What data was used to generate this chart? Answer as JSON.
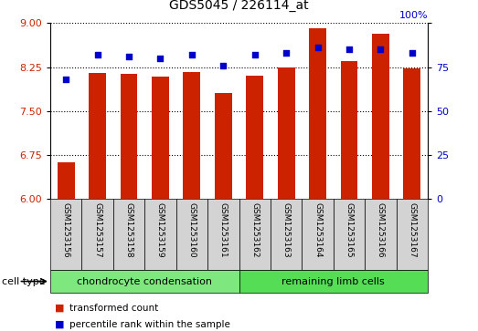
{
  "title": "GDS5045 / 226114_at",
  "samples": [
    "GSM1253156",
    "GSM1253157",
    "GSM1253158",
    "GSM1253159",
    "GSM1253160",
    "GSM1253161",
    "GSM1253162",
    "GSM1253163",
    "GSM1253164",
    "GSM1253165",
    "GSM1253166",
    "GSM1253167"
  ],
  "transformed_count": [
    6.62,
    8.15,
    8.13,
    8.08,
    8.16,
    7.8,
    8.1,
    8.25,
    8.92,
    8.35,
    8.82,
    8.22
  ],
  "percentile_rank": [
    68,
    82,
    81,
    80,
    82,
    76,
    82,
    83,
    86,
    85,
    85,
    83
  ],
  "ylim_left": [
    6,
    9
  ],
  "ylim_right": [
    0,
    100
  ],
  "yticks_left": [
    6,
    6.75,
    7.5,
    8.25,
    9
  ],
  "yticks_right": [
    0,
    25,
    50,
    75,
    100
  ],
  "bar_color": "#cc2200",
  "dot_color": "#0000cc",
  "cell_type_groups": [
    {
      "label": "chondrocyte condensation",
      "start": 0,
      "end": 5,
      "color": "#7ee87e"
    },
    {
      "label": "remaining limb cells",
      "start": 6,
      "end": 11,
      "color": "#55dd55"
    }
  ],
  "legend_bar_label": "transformed count",
  "legend_dot_label": "percentile rank within the sample",
  "cell_type_label": "cell type",
  "bar_bottom": 6,
  "right_axis_percent": "100%"
}
